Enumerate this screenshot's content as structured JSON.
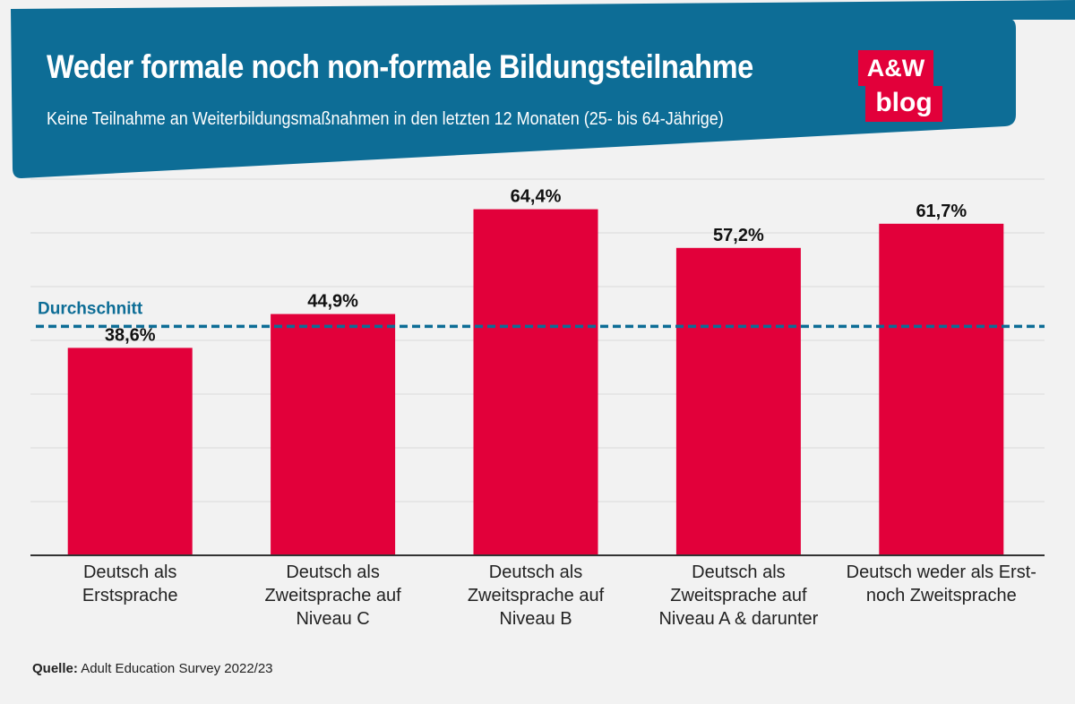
{
  "header": {
    "title": "Weder formale noch non-formale Bildungsteilnahme",
    "subtitle": "Keine Teilnahme an Weiterbildungsmaßnahmen in den letzten 12 Monaten (25- bis 64-Jährige)",
    "logo_line1": "A&W",
    "logo_line2": "blog"
  },
  "colors": {
    "header": "#0d6d96",
    "bar": "#e2003a",
    "average_line": "#0d6d96",
    "logo": "#e2003a"
  },
  "chart_data": {
    "type": "bar",
    "title": "Weder formale noch non-formale Bildungsteilnahme",
    "subtitle": "Keine Teilnahme an Weiterbildungsmaßnahmen in den letzten 12 Monaten (25- bis 64-Jährige)",
    "categories": [
      "Deutsch als\nErstsprache",
      "Deutsch als\nZweitsprache auf\nNiveau C",
      "Deutsch als\nZweitsprache auf\nNiveau B",
      "Deutsch als\nZweitsprache auf\nNiveau A & darunter",
      "Deutsch weder als Erst-\nnoch Zweitsprache"
    ],
    "values": [
      38.6,
      44.9,
      64.4,
      57.2,
      61.7
    ],
    "value_labels": [
      "38,6%",
      "44,9%",
      "64,4%",
      "57,2%",
      "61,7%"
    ],
    "average": {
      "label": "Durchschnitt",
      "value": 42.6
    },
    "ylim": [
      0,
      70
    ],
    "grid": true,
    "gridline_step": 10,
    "xlabel": "",
    "ylabel": ""
  },
  "source": {
    "label": "Quelle:",
    "text": "Adult Education Survey 2022/23"
  }
}
